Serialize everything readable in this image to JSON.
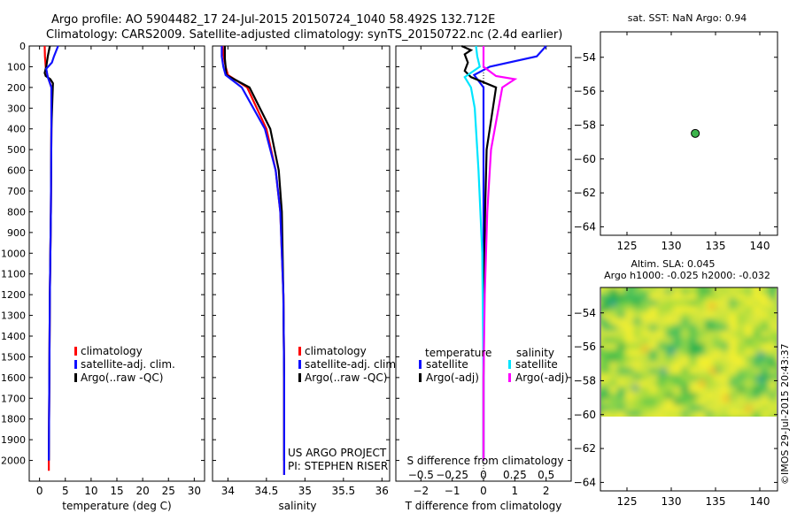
{
  "header": {
    "line1": "Argo profile: AO 5904482_17 24-Jul-2015 20150724_1040 58.492S 132.712E",
    "line2": "Climatology: CARS2009. Satellite-adjusted climatology: synTS_20150722.nc (2.4d earlier)"
  },
  "colors": {
    "red": "#ff0000",
    "blue": "#1010ff",
    "black": "#000000",
    "cyan": "#00e5ff",
    "magenta": "#ff00ff",
    "green": "#3cb44b"
  },
  "chart_data": [
    {
      "type": "line",
      "id": "temperature",
      "xlabel": "temperature (deg C)",
      "ylabel": "",
      "xlim": [
        -2,
        32
      ],
      "ylim": [
        2100,
        0
      ],
      "xticks": [
        0,
        5,
        10,
        15,
        20,
        25,
        30
      ],
      "yticks": [
        0,
        100,
        200,
        300,
        400,
        500,
        600,
        700,
        800,
        900,
        1000,
        1100,
        1200,
        1300,
        1400,
        1500,
        1600,
        1700,
        1800,
        1900,
        2000
      ],
      "legend": [
        "climatology",
        "satellite-adj. clim.",
        "Argo(..raw -QC)"
      ],
      "series": [
        {
          "name": "climatology",
          "color": "red",
          "depth": [
            0,
            50,
            100,
            140,
            200,
            400,
            800,
            1200,
            1600,
            2000,
            2050
          ],
          "values": [
            1.0,
            1.05,
            1.2,
            1.5,
            2.3,
            2.3,
            2.2,
            2.0,
            1.9,
            1.8,
            1.8
          ]
        },
        {
          "name": "Argo(..raw -QC)",
          "color": "black",
          "depth": [
            0,
            50,
            100,
            130,
            145,
            160,
            180,
            250,
            400,
            800,
            1200,
            1600,
            2000
          ],
          "values": [
            2.0,
            1.6,
            1.3,
            1.0,
            1.2,
            2.1,
            2.6,
            2.5,
            2.3,
            2.2,
            2.0,
            1.9,
            1.8
          ]
        },
        {
          "name": "satellite-adj. clim.",
          "color": "blue",
          "depth": [
            0,
            50,
            80,
            110,
            150,
            200,
            400,
            800,
            1200,
            1600,
            2000
          ],
          "values": [
            3.6,
            2.8,
            2.4,
            1.3,
            1.6,
            2.3,
            2.3,
            2.2,
            2.0,
            1.9,
            1.8
          ]
        }
      ]
    },
    {
      "type": "line",
      "id": "salinity",
      "xlabel": "salinity",
      "xlim": [
        33.8,
        36.1
      ],
      "ylim": [
        2100,
        0
      ],
      "xticks": [
        34,
        34.5,
        35,
        35.5,
        36
      ],
      "xtick_labels": [
        "34",
        "34.5",
        "35",
        "35.5",
        "36"
      ],
      "legend": [
        "climatology",
        "satellite-adj. clim.",
        "Argo(..raw -QC)"
      ],
      "note_line1": "US ARGO PROJECT",
      "note_line2": "PI: STEPHEN RISER",
      "series": [
        {
          "name": "climatology",
          "color": "red",
          "depth": [
            0,
            60,
            100,
            140,
            200,
            400,
            600,
            800,
            1200,
            1600,
            2000,
            2070
          ],
          "values": [
            33.93,
            33.95,
            33.97,
            34.0,
            34.25,
            34.5,
            34.62,
            34.68,
            34.72,
            34.73,
            34.73,
            34.73
          ]
        },
        {
          "name": "Argo(..raw -QC)",
          "color": "black",
          "depth": [
            0,
            60,
            100,
            140,
            200,
            400,
            600,
            800,
            1200,
            1600,
            2000
          ],
          "values": [
            33.96,
            33.96,
            33.97,
            33.98,
            34.28,
            34.55,
            34.66,
            34.7,
            34.72,
            34.73,
            34.73
          ]
        },
        {
          "name": "satellite-adj. clim.",
          "color": "blue",
          "depth": [
            0,
            50,
            100,
            140,
            200,
            400,
            600,
            800,
            1200,
            1600,
            2000,
            2070
          ],
          "values": [
            33.92,
            33.92,
            33.94,
            33.97,
            34.18,
            34.48,
            34.62,
            34.68,
            34.72,
            34.73,
            34.73,
            34.73
          ]
        }
      ]
    },
    {
      "type": "line",
      "id": "difference",
      "xlabel": "T difference from climatology",
      "xlabel_top": "S difference from climatology",
      "xlim": [
        -2.8,
        2.8
      ],
      "ylim": [
        2100,
        0
      ],
      "xticks": [
        -2,
        -1,
        0,
        1,
        2
      ],
      "xtick_labels": [
        "−2",
        "−1",
        "0",
        "1",
        "2"
      ],
      "xticks_top": [
        -0.5,
        -0.25,
        0,
        0.25,
        0.5
      ],
      "xticks_top_labels": [
        "−0.5",
        "−0.25",
        "0",
        "0.25",
        "0.5"
      ],
      "legend_temperature_title": "temperature",
      "legend_salinity_title": "salinity",
      "legend_temperature": [
        "satellite",
        "Argo(-adj)"
      ],
      "legend_salinity": [
        "satellite",
        "Argo(-adj)"
      ],
      "series": [
        {
          "name": "T satellite",
          "color": "blue",
          "depth": [
            0,
            50,
            100,
            140,
            200,
            400,
            800,
            1200,
            1600,
            2000
          ],
          "values": [
            2.0,
            1.7,
            0.2,
            -0.3,
            0.0,
            0.0,
            0.0,
            0.0,
            0.0,
            0.0
          ]
        },
        {
          "name": "T Argo(-adj)",
          "color": "black",
          "depth": [
            0,
            20,
            40,
            80,
            120,
            150,
            200,
            300,
            500,
            800,
            1200,
            1600,
            2000
          ],
          "values": [
            -0.7,
            -0.4,
            -0.6,
            -0.5,
            -0.6,
            -0.4,
            0.4,
            0.3,
            0.1,
            0.05,
            0.02,
            0.0,
            0.0
          ]
        },
        {
          "name": "S satellite",
          "color": "cyan",
          "depth": [
            0,
            50,
            100,
            150,
            200,
            300,
            600,
            1000,
            1600,
            2000
          ],
          "values": [
            -0.06,
            -0.05,
            -0.03,
            -0.15,
            -0.1,
            -0.07,
            -0.04,
            -0.01,
            0.0,
            0.0
          ]
        },
        {
          "name": "S Argo(-adj)",
          "color": "magenta",
          "depth": [
            0,
            50,
            100,
            145,
            160,
            200,
            300,
            500,
            800,
            1200,
            1600,
            2000
          ],
          "values": [
            0.0,
            0.0,
            0.0,
            0.1,
            0.25,
            0.15,
            0.12,
            0.06,
            0.03,
            0.01,
            0.0,
            0.0
          ]
        }
      ]
    },
    {
      "type": "scatter",
      "id": "sst_map",
      "title": "sat. SST: NaN Argo: 0.94",
      "xlim": [
        122,
        142
      ],
      "ylim": [
        -64.5,
        -52.5
      ],
      "xticks": [
        125,
        130,
        135,
        140
      ],
      "yticks": [
        -54,
        -56,
        -58,
        -60,
        -62,
        -64
      ],
      "points": [
        {
          "lon": 132.712,
          "lat": -58.492
        }
      ]
    },
    {
      "type": "heatmap",
      "id": "sla_map",
      "title_line1": "Altim. SLA: 0.045",
      "title_line2": "Argo h1000: -0.025 h2000: -0.032",
      "xlim": [
        122,
        142
      ],
      "ylim": [
        -64.5,
        -52.5
      ],
      "xticks": [
        125,
        130,
        135,
        140
      ],
      "yticks": [
        -54,
        -56,
        -58,
        -60,
        -62,
        -64
      ],
      "data_lat_range": [
        -60,
        -52.5
      ],
      "watermark": "©IMOS 29-Jul-2015 20:43:37"
    }
  ]
}
